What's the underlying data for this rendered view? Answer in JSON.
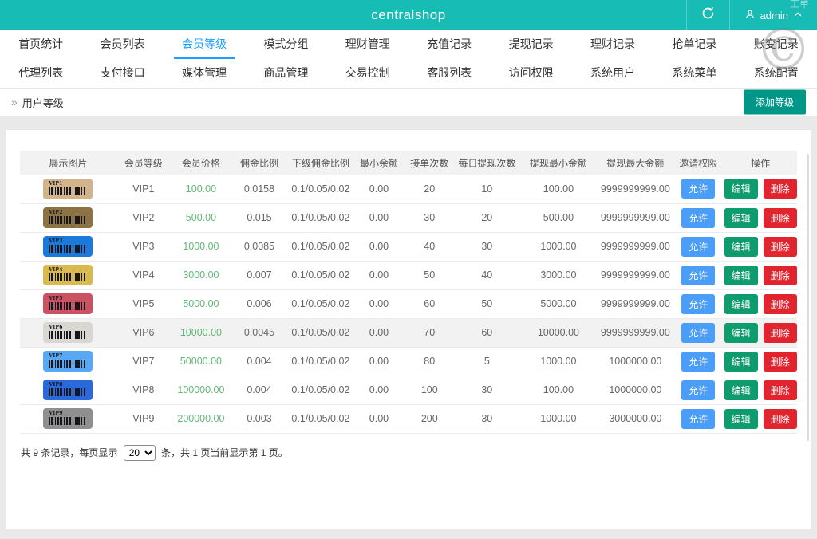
{
  "app": {
    "title": "centralshop",
    "admin_label": "admin",
    "corner_text": "工单",
    "watermark": "©"
  },
  "nav": {
    "active_index": 2,
    "row1": [
      "首页统计",
      "会员列表",
      "会员等级",
      "模式分组",
      "理财管理",
      "充值记录",
      "提现记录",
      "理财记录",
      "抢单记录",
      "账变记录"
    ],
    "row2": [
      "代理列表",
      "支付接口",
      "媒体管理",
      "商品管理",
      "交易控制",
      "客服列表",
      "访问权限",
      "系统用户",
      "系统菜单",
      "系统配置"
    ]
  },
  "breadcrumb": {
    "icon": "»",
    "label": "用户等级",
    "add_button_label": "添加等级"
  },
  "table": {
    "headers": [
      "展示图片",
      "会员等级",
      "会员价格",
      "佣金比例",
      "下级佣金比例",
      "最小余额",
      "接单次数",
      "每日提现次数",
      "提现最小金额",
      "提现最大金额",
      "邀请权限",
      "操作"
    ],
    "action_labels": {
      "invite": "允许",
      "edit": "编辑",
      "delete": "删除"
    },
    "colors": {
      "invite_button": "#4b9ef8",
      "edit_button": "#0e9c6e",
      "delete_button": "#e1242e",
      "price_text": "#5fb878",
      "theme": "#17bcb4",
      "active_tab": "#1e9fff",
      "add_button": "#009688"
    },
    "rows": [
      {
        "level": "VIP1",
        "card_color": "#d2b48c",
        "price": "100.00",
        "commission": "0.0158",
        "sub_commission": "0.1/0.05/0.02",
        "min_balance": "0.00",
        "order_count": "20",
        "daily_withdraw_count": "10",
        "withdraw_min": "100.00",
        "withdraw_max": "9999999999.00",
        "highlight": false
      },
      {
        "level": "VIP2",
        "card_color": "#8d7344",
        "price": "500.00",
        "commission": "0.015",
        "sub_commission": "0.1/0.05/0.02",
        "min_balance": "0.00",
        "order_count": "30",
        "daily_withdraw_count": "20",
        "withdraw_min": "500.00",
        "withdraw_max": "9999999999.00",
        "highlight": false
      },
      {
        "level": "VIP3",
        "card_color": "#1b7ad9",
        "price": "1000.00",
        "commission": "0.0085",
        "sub_commission": "0.1/0.05/0.02",
        "min_balance": "0.00",
        "order_count": "40",
        "daily_withdraw_count": "30",
        "withdraw_min": "1000.00",
        "withdraw_max": "9999999999.00",
        "highlight": false
      },
      {
        "level": "VIP4",
        "card_color": "#d9ba4e",
        "price": "3000.00",
        "commission": "0.007",
        "sub_commission": "0.1/0.05/0.02",
        "min_balance": "0.00",
        "order_count": "50",
        "daily_withdraw_count": "40",
        "withdraw_min": "3000.00",
        "withdraw_max": "9999999999.00",
        "highlight": false
      },
      {
        "level": "VIP5",
        "card_color": "#cb5361",
        "price": "5000.00",
        "commission": "0.006",
        "sub_commission": "0.1/0.05/0.02",
        "min_balance": "0.00",
        "order_count": "60",
        "daily_withdraw_count": "50",
        "withdraw_min": "5000.00",
        "withdraw_max": "9999999999.00",
        "highlight": false
      },
      {
        "level": "VIP6",
        "card_color": "#d8d7d2",
        "price": "10000.00",
        "commission": "0.0045",
        "sub_commission": "0.1/0.05/0.02",
        "min_balance": "0.00",
        "order_count": "70",
        "daily_withdraw_count": "60",
        "withdraw_min": "10000.00",
        "withdraw_max": "9999999999.00",
        "highlight": true
      },
      {
        "level": "VIP7",
        "card_color": "#57a9f6",
        "price": "50000.00",
        "commission": "0.004",
        "sub_commission": "0.1/0.05/0.02",
        "min_balance": "0.00",
        "order_count": "80",
        "daily_withdraw_count": "5",
        "withdraw_min": "1000.00",
        "withdraw_max": "1000000.00",
        "highlight": false
      },
      {
        "level": "VIP8",
        "card_color": "#2b68d9",
        "price": "100000.00",
        "commission": "0.004",
        "sub_commission": "0.1/0.05/0.02",
        "min_balance": "0.00",
        "order_count": "100",
        "daily_withdraw_count": "30",
        "withdraw_min": "100.00",
        "withdraw_max": "1000000.00",
        "highlight": false
      },
      {
        "level": "VIP9",
        "card_color": "#8f8f8f",
        "price": "200000.00",
        "commission": "0.003",
        "sub_commission": "0.1/0.05/0.02",
        "min_balance": "0.00",
        "order_count": "200",
        "daily_withdraw_count": "30",
        "withdraw_min": "1000.00",
        "withdraw_max": "3000000.00",
        "highlight": false
      }
    ]
  },
  "pagination": {
    "text_before": "共 9 条记录，每页显示",
    "per_page": "20",
    "text_after": "条，共 1 页当前显示第 1 页。"
  }
}
